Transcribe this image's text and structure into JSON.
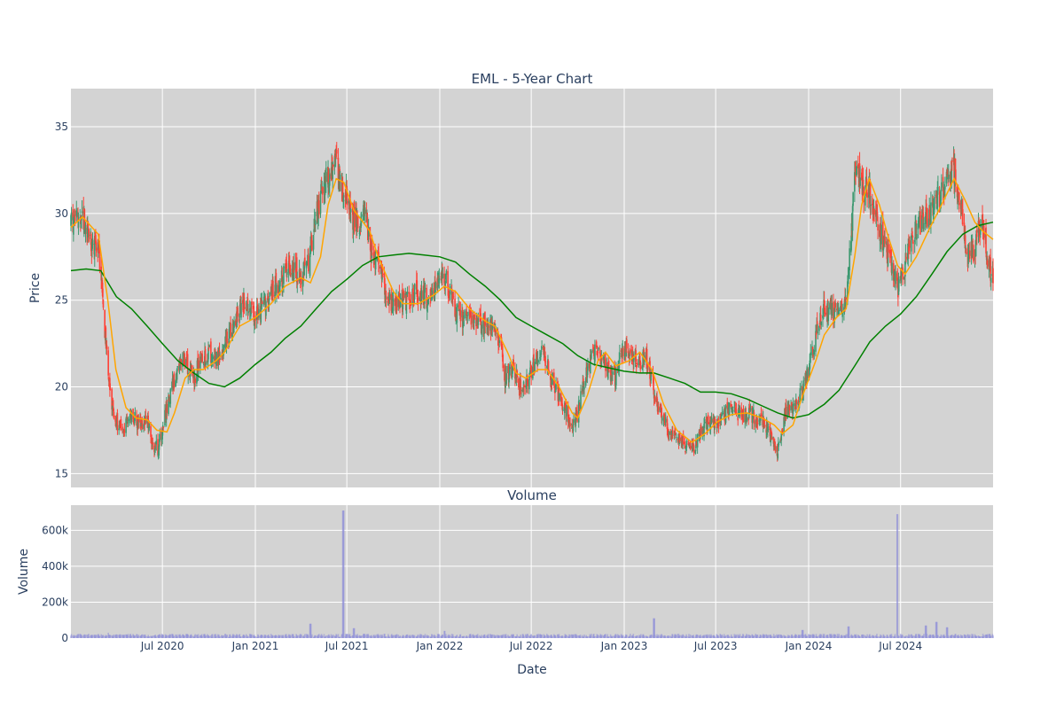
{
  "chart_data": [
    {
      "type": "candlestick",
      "title": "EML - 5-Year Chart",
      "ylabel": "Price",
      "ylim": [
        14.2,
        37.2
      ],
      "y_ticks": [
        15,
        20,
        25,
        30,
        35
      ],
      "y_tick_labels": [
        "15",
        "20",
        "25",
        "30",
        "35"
      ],
      "x_range": [
        "2020-01-02",
        "2024-12-31"
      ],
      "grid": true,
      "background": "#d3d3d3",
      "colors": {
        "up": "#3d9970",
        "down": "#ff4136",
        "ma_short": "#ffa500",
        "ma_long": "#008000"
      },
      "close_anchors": [
        [
          "2020-01-02",
          29.5
        ],
        [
          "2020-01-20",
          30.0
        ],
        [
          "2020-02-10",
          28.4
        ],
        [
          "2020-02-25",
          28.0
        ],
        [
          "2020-03-05",
          25.0
        ],
        [
          "2020-03-12",
          22.0
        ],
        [
          "2020-03-20",
          19.5
        ],
        [
          "2020-04-01",
          18.0
        ],
        [
          "2020-04-15",
          17.5
        ],
        [
          "2020-05-01",
          18.5
        ],
        [
          "2020-05-15",
          17.8
        ],
        [
          "2020-06-01",
          18.2
        ],
        [
          "2020-06-10",
          16.8
        ],
        [
          "2020-06-22",
          16.4
        ],
        [
          "2020-07-01",
          17.5
        ],
        [
          "2020-07-15",
          19.5
        ],
        [
          "2020-08-01",
          21.0
        ],
        [
          "2020-08-15",
          21.5
        ],
        [
          "2020-09-01",
          20.5
        ],
        [
          "2020-09-15",
          21.5
        ],
        [
          "2020-10-01",
          22.0
        ],
        [
          "2020-10-15",
          21.5
        ],
        [
          "2020-11-01",
          22.5
        ],
        [
          "2020-11-15",
          23.5
        ],
        [
          "2020-12-01",
          24.5
        ],
        [
          "2020-12-15",
          25.0
        ],
        [
          "2021-01-01",
          24.0
        ],
        [
          "2021-01-15",
          24.5
        ],
        [
          "2021-02-01",
          25.5
        ],
        [
          "2021-02-15",
          26.0
        ],
        [
          "2021-03-01",
          26.5
        ],
        [
          "2021-03-15",
          26.8
        ],
        [
          "2021-04-01",
          26.5
        ],
        [
          "2021-04-15",
          27.0
        ],
        [
          "2021-05-01",
          30.0
        ],
        [
          "2021-05-15",
          31.5
        ],
        [
          "2021-06-01",
          32.5
        ],
        [
          "2021-06-10",
          33.0
        ],
        [
          "2021-06-20",
          31.8
        ],
        [
          "2021-07-01",
          31.0
        ],
        [
          "2021-07-10",
          29.8
        ],
        [
          "2021-07-25",
          29.5
        ],
        [
          "2021-08-05",
          30.5
        ],
        [
          "2021-08-20",
          27.5
        ],
        [
          "2021-09-01",
          27.0
        ],
        [
          "2021-09-15",
          25.5
        ],
        [
          "2021-10-01",
          24.8
        ],
        [
          "2021-10-15",
          24.8
        ],
        [
          "2021-11-01",
          25.0
        ],
        [
          "2021-11-15",
          25.5
        ],
        [
          "2021-12-01",
          25.2
        ],
        [
          "2021-12-15",
          25.0
        ],
        [
          "2022-01-03",
          26.5
        ],
        [
          "2022-01-15",
          26.0
        ],
        [
          "2022-02-01",
          24.5
        ],
        [
          "2022-02-15",
          24.0
        ],
        [
          "2022-03-01",
          24.2
        ],
        [
          "2022-03-15",
          23.8
        ],
        [
          "2022-04-01",
          23.5
        ],
        [
          "2022-04-15",
          23.5
        ],
        [
          "2022-05-01",
          22.5
        ],
        [
          "2022-05-10",
          20.5
        ],
        [
          "2022-05-25",
          21.0
        ],
        [
          "2022-06-10",
          20.0
        ],
        [
          "2022-06-25",
          20.5
        ],
        [
          "2022-07-10",
          21.5
        ],
        [
          "2022-07-25",
          22.0
        ],
        [
          "2022-08-10",
          20.5
        ],
        [
          "2022-08-25",
          19.5
        ],
        [
          "2022-09-10",
          18.5
        ],
        [
          "2022-09-20",
          17.5
        ],
        [
          "2022-10-01",
          18.5
        ],
        [
          "2022-10-15",
          20.5
        ],
        [
          "2022-11-01",
          22.0
        ],
        [
          "2022-11-15",
          21.8
        ],
        [
          "2022-12-01",
          21.0
        ],
        [
          "2022-12-15",
          20.5
        ],
        [
          "2023-01-01",
          22.5
        ],
        [
          "2023-01-15",
          21.8
        ],
        [
          "2023-02-01",
          21.5
        ],
        [
          "2023-02-15",
          21.5
        ],
        [
          "2023-02-25",
          20.5
        ],
        [
          "2023-03-05",
          19.0
        ],
        [
          "2023-03-20",
          18.0
        ],
        [
          "2023-04-05",
          17.2
        ],
        [
          "2023-04-20",
          17.0
        ],
        [
          "2023-05-05",
          16.5
        ],
        [
          "2023-05-20",
          16.5
        ],
        [
          "2023-06-05",
          17.5
        ],
        [
          "2023-06-20",
          18.0
        ],
        [
          "2023-07-05",
          18.0
        ],
        [
          "2023-07-20",
          18.5
        ],
        [
          "2023-08-05",
          18.8
        ],
        [
          "2023-08-20",
          18.3
        ],
        [
          "2023-09-05",
          18.5
        ],
        [
          "2023-09-20",
          18.2
        ],
        [
          "2023-10-05",
          18.0
        ],
        [
          "2023-10-20",
          17.0
        ],
        [
          "2023-11-01",
          16.3
        ],
        [
          "2023-11-15",
          18.5
        ],
        [
          "2023-12-01",
          19.0
        ],
        [
          "2023-12-15",
          19.5
        ],
        [
          "2024-01-01",
          21.0
        ],
        [
          "2024-01-15",
          23.0
        ],
        [
          "2024-02-01",
          24.5
        ],
        [
          "2024-02-15",
          24.5
        ],
        [
          "2024-03-01",
          24.0
        ],
        [
          "2024-03-15",
          25.0
        ],
        [
          "2024-03-25",
          28.5
        ],
        [
          "2024-04-01",
          32.5
        ],
        [
          "2024-04-15",
          31.5
        ],
        [
          "2024-05-01",
          31.0
        ],
        [
          "2024-05-15",
          29.5
        ],
        [
          "2024-06-01",
          28.0
        ],
        [
          "2024-06-15",
          27.0
        ],
        [
          "2024-06-25",
          25.5
        ],
        [
          "2024-07-05",
          26.5
        ],
        [
          "2024-07-15",
          27.5
        ],
        [
          "2024-08-01",
          29.0
        ],
        [
          "2024-08-15",
          29.5
        ],
        [
          "2024-09-01",
          30.0
        ],
        [
          "2024-09-15",
          31.0
        ],
        [
          "2024-10-01",
          32.0
        ],
        [
          "2024-10-15",
          32.5
        ],
        [
          "2024-11-01",
          30.0
        ],
        [
          "2024-11-10",
          27.5
        ],
        [
          "2024-11-25",
          28.0
        ],
        [
          "2024-12-05",
          29.5
        ],
        [
          "2024-12-15",
          28.5
        ],
        [
          "2024-12-22",
          27.0
        ],
        [
          "2024-12-31",
          26.5
        ]
      ],
      "ma_short": [
        [
          "2020-01-02",
          29.2
        ],
        [
          "2020-01-25",
          29.8
        ],
        [
          "2020-02-25",
          28.8
        ],
        [
          "2020-03-15",
          25.0
        ],
        [
          "2020-03-31",
          21.0
        ],
        [
          "2020-04-20",
          18.8
        ],
        [
          "2020-05-10",
          18.2
        ],
        [
          "2020-06-01",
          18.1
        ],
        [
          "2020-06-20",
          17.5
        ],
        [
          "2020-07-10",
          17.4
        ],
        [
          "2020-07-25",
          18.5
        ],
        [
          "2020-08-15",
          20.5
        ],
        [
          "2020-09-01",
          21.0
        ],
        [
          "2020-09-20",
          21.0
        ],
        [
          "2020-10-15",
          21.5
        ],
        [
          "2020-11-01",
          22.0
        ],
        [
          "2020-12-01",
          23.5
        ],
        [
          "2021-01-01",
          24.0
        ],
        [
          "2021-02-01",
          24.8
        ],
        [
          "2021-03-01",
          25.8
        ],
        [
          "2021-04-01",
          26.3
        ],
        [
          "2021-04-20",
          26.0
        ],
        [
          "2021-05-10",
          27.5
        ],
        [
          "2021-05-25",
          30.5
        ],
        [
          "2021-06-10",
          32.0
        ],
        [
          "2021-06-25",
          31.8
        ],
        [
          "2021-07-15",
          30.2
        ],
        [
          "2021-08-15",
          29.0
        ],
        [
          "2021-09-01",
          27.5
        ],
        [
          "2021-10-01",
          25.5
        ],
        [
          "2021-10-20",
          24.8
        ],
        [
          "2021-11-20",
          24.8
        ],
        [
          "2021-12-20",
          25.3
        ],
        [
          "2022-01-10",
          25.8
        ],
        [
          "2022-02-01",
          25.5
        ],
        [
          "2022-03-01",
          24.5
        ],
        [
          "2022-04-01",
          23.8
        ],
        [
          "2022-04-20",
          23.5
        ],
        [
          "2022-05-15",
          22.0
        ],
        [
          "2022-06-01",
          20.8
        ],
        [
          "2022-06-20",
          20.5
        ],
        [
          "2022-07-15",
          21.0
        ],
        [
          "2022-08-01",
          21.0
        ],
        [
          "2022-08-25",
          20.0
        ],
        [
          "2022-09-20",
          18.5
        ],
        [
          "2022-10-01",
          18.2
        ],
        [
          "2022-10-20",
          19.5
        ],
        [
          "2022-11-10",
          21.5
        ],
        [
          "2022-11-25",
          22.0
        ],
        [
          "2022-12-15",
          21.2
        ],
        [
          "2023-01-10",
          21.5
        ],
        [
          "2023-02-01",
          22.0
        ],
        [
          "2023-02-25",
          21.0
        ],
        [
          "2023-03-20",
          19.0
        ],
        [
          "2023-04-15",
          17.5
        ],
        [
          "2023-05-15",
          16.8
        ],
        [
          "2023-06-10",
          17.3
        ],
        [
          "2023-07-05",
          18.0
        ],
        [
          "2023-08-01",
          18.4
        ],
        [
          "2023-09-01",
          18.5
        ],
        [
          "2023-10-01",
          18.2
        ],
        [
          "2023-10-25",
          17.8
        ],
        [
          "2023-11-10",
          17.3
        ],
        [
          "2023-12-01",
          17.8
        ],
        [
          "2023-12-20",
          19.5
        ],
        [
          "2024-01-15",
          21.5
        ],
        [
          "2024-02-01",
          23.0
        ],
        [
          "2024-02-25",
          24.0
        ],
        [
          "2024-03-15",
          24.5
        ],
        [
          "2024-04-01",
          27.5
        ],
        [
          "2024-04-15",
          30.5
        ],
        [
          "2024-04-30",
          32.0
        ],
        [
          "2024-05-20",
          30.5
        ],
        [
          "2024-06-05",
          28.8
        ],
        [
          "2024-06-25",
          27.0
        ],
        [
          "2024-07-10",
          26.5
        ],
        [
          "2024-08-01",
          27.5
        ],
        [
          "2024-08-25",
          29.0
        ],
        [
          "2024-09-20",
          30.5
        ],
        [
          "2024-10-15",
          32.0
        ],
        [
          "2024-11-05",
          30.8
        ],
        [
          "2024-11-25",
          29.5
        ],
        [
          "2024-12-10",
          29.0
        ],
        [
          "2024-12-31",
          28.5
        ]
      ],
      "ma_long": [
        [
          "2020-01-02",
          26.7
        ],
        [
          "2020-02-01",
          26.8
        ],
        [
          "2020-03-01",
          26.7
        ],
        [
          "2020-04-01",
          25.2
        ],
        [
          "2020-05-01",
          24.5
        ],
        [
          "2020-06-01",
          23.5
        ],
        [
          "2020-07-01",
          22.5
        ],
        [
          "2020-08-01",
          21.5
        ],
        [
          "2020-09-01",
          20.8
        ],
        [
          "2020-10-01",
          20.2
        ],
        [
          "2020-11-01",
          20.0
        ],
        [
          "2020-12-01",
          20.5
        ],
        [
          "2021-01-01",
          21.3
        ],
        [
          "2021-02-01",
          22.0
        ],
        [
          "2021-03-01",
          22.8
        ],
        [
          "2021-04-01",
          23.5
        ],
        [
          "2021-05-01",
          24.5
        ],
        [
          "2021-06-01",
          25.5
        ],
        [
          "2021-07-01",
          26.2
        ],
        [
          "2021-08-01",
          27.0
        ],
        [
          "2021-09-01",
          27.5
        ],
        [
          "2021-10-01",
          27.6
        ],
        [
          "2021-11-01",
          27.7
        ],
        [
          "2021-12-01",
          27.6
        ],
        [
          "2022-01-01",
          27.5
        ],
        [
          "2022-02-01",
          27.2
        ],
        [
          "2022-03-01",
          26.5
        ],
        [
          "2022-04-01",
          25.8
        ],
        [
          "2022-05-01",
          25.0
        ],
        [
          "2022-06-01",
          24.0
        ],
        [
          "2022-07-01",
          23.5
        ],
        [
          "2022-08-01",
          23.0
        ],
        [
          "2022-09-01",
          22.5
        ],
        [
          "2022-10-01",
          21.8
        ],
        [
          "2022-11-01",
          21.3
        ],
        [
          "2022-12-01",
          21.1
        ],
        [
          "2023-01-01",
          20.9
        ],
        [
          "2023-02-01",
          20.8
        ],
        [
          "2023-03-01",
          20.8
        ],
        [
          "2023-04-01",
          20.5
        ],
        [
          "2023-05-01",
          20.2
        ],
        [
          "2023-06-01",
          19.7
        ],
        [
          "2023-07-01",
          19.7
        ],
        [
          "2023-08-01",
          19.6
        ],
        [
          "2023-09-01",
          19.3
        ],
        [
          "2023-10-01",
          18.9
        ],
        [
          "2023-11-01",
          18.5
        ],
        [
          "2023-12-01",
          18.2
        ],
        [
          "2024-01-01",
          18.4
        ],
        [
          "2024-02-01",
          19.0
        ],
        [
          "2024-03-01",
          19.8
        ],
        [
          "2024-04-01",
          21.2
        ],
        [
          "2024-05-01",
          22.6
        ],
        [
          "2024-06-01",
          23.5
        ],
        [
          "2024-07-01",
          24.2
        ],
        [
          "2024-08-01",
          25.2
        ],
        [
          "2024-09-01",
          26.5
        ],
        [
          "2024-10-01",
          27.8
        ],
        [
          "2024-11-01",
          28.8
        ],
        [
          "2024-12-01",
          29.3
        ],
        [
          "2024-12-31",
          29.5
        ]
      ]
    },
    {
      "type": "bar",
      "title": "Volume",
      "ylabel": "Volume",
      "xlabel": "Date",
      "ylim": [
        0,
        740000
      ],
      "y_ticks": [
        0,
        200000,
        400000,
        600000
      ],
      "y_tick_labels": [
        "0",
        "200k",
        "400k",
        "600k"
      ],
      "x_tick_dates": [
        "2020-07-01",
        "2021-01-01",
        "2021-07-01",
        "2022-01-01",
        "2022-07-01",
        "2023-01-01",
        "2023-07-01",
        "2024-01-01",
        "2024-07-01"
      ],
      "x_tick_labels": [
        "Jul 2020",
        "Jan 2021",
        "Jul 2021",
        "Jan 2022",
        "Jul 2022",
        "Jan 2023",
        "Jul 2023",
        "Jan 2024",
        "Jul 2024"
      ],
      "bar_color": "#8c8cd9",
      "background": "#d3d3d3",
      "typical_volume": 15000,
      "spikes": [
        [
          "2021-06-24",
          710000
        ],
        [
          "2024-06-24",
          690000
        ],
        [
          "2023-03-01",
          110000
        ],
        [
          "2021-04-20",
          80000
        ],
        [
          "2024-03-20",
          65000
        ],
        [
          "2024-08-20",
          70000
        ],
        [
          "2024-09-10",
          90000
        ],
        [
          "2024-10-01",
          60000
        ],
        [
          "2022-01-10",
          40000
        ],
        [
          "2023-12-20",
          45000
        ],
        [
          "2021-07-15",
          55000
        ],
        [
          "2020-03-15",
          30000
        ]
      ]
    }
  ]
}
